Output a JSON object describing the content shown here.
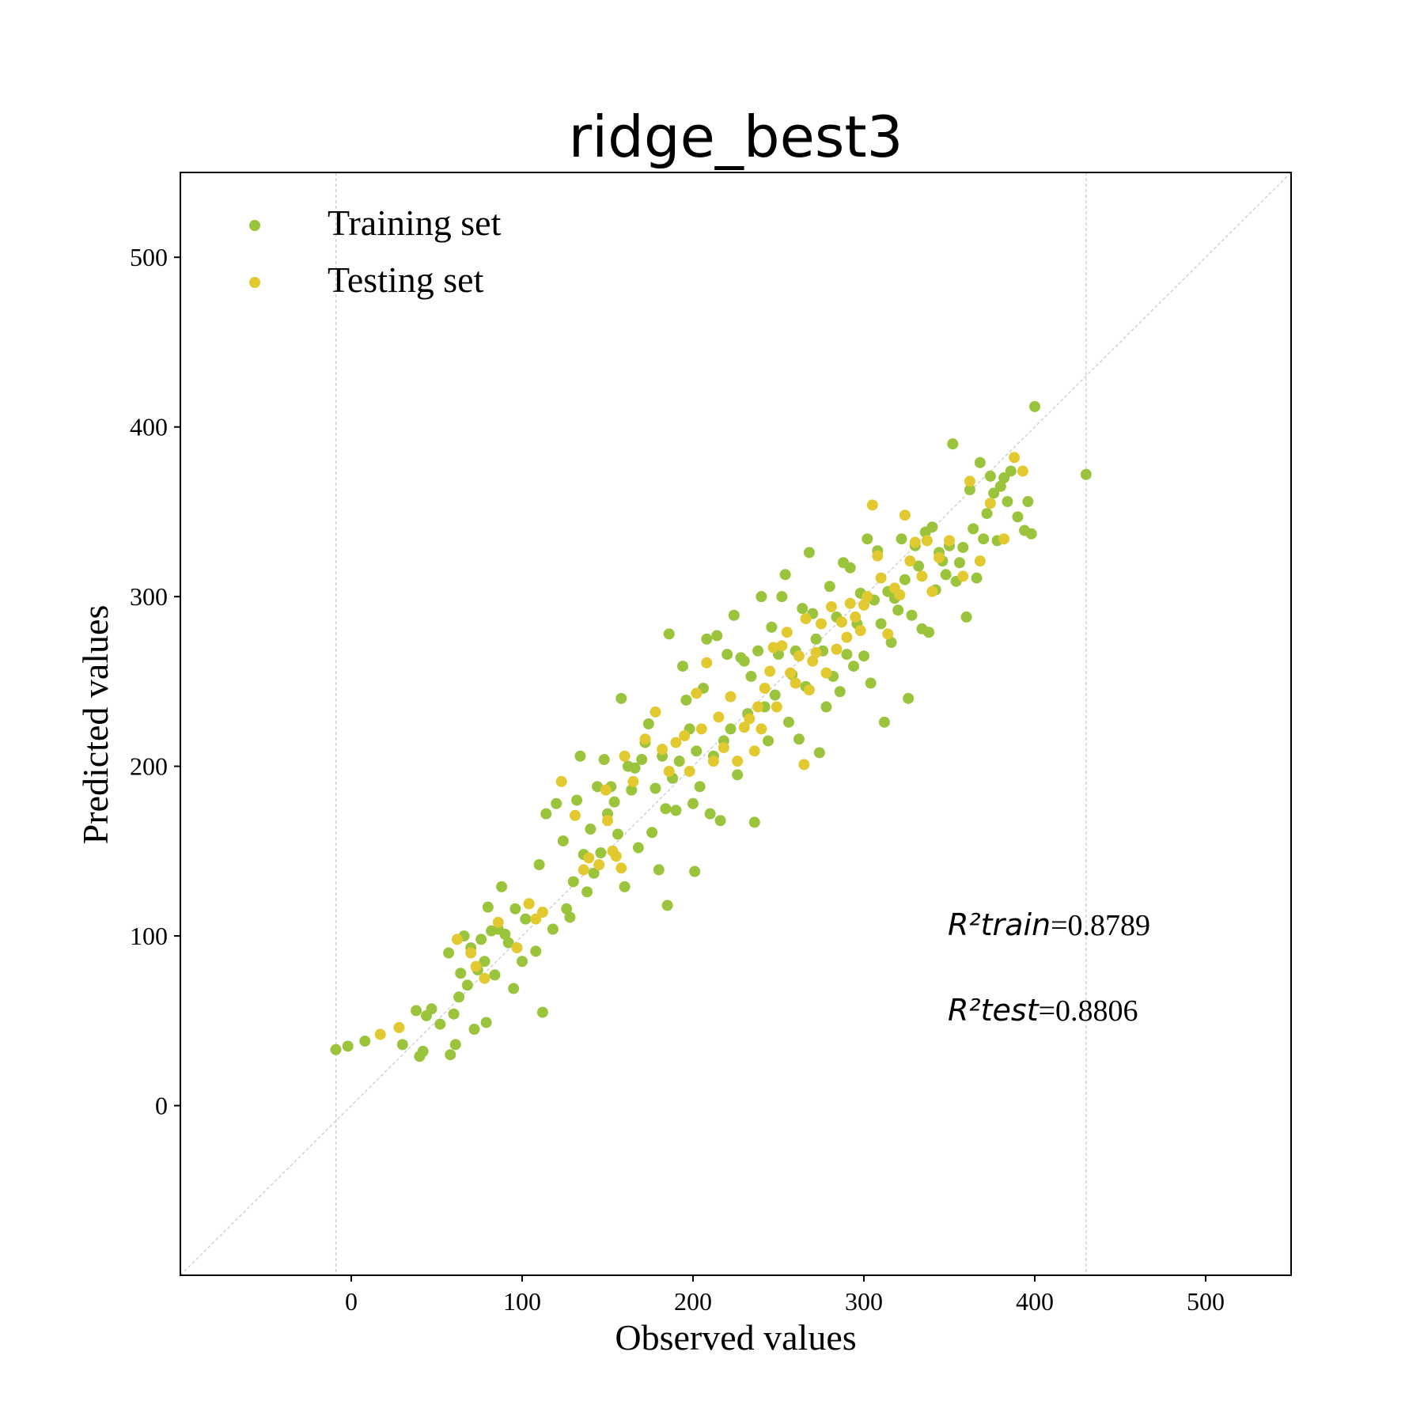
{
  "chart_data": {
    "type": "scatter",
    "title": "ridge_best3",
    "xlabel": "Observed values",
    "ylabel": "Predicted values",
    "xlim": [
      -100,
      550
    ],
    "ylim": [
      -100,
      550
    ],
    "xticks": [
      "0",
      "100",
      "200",
      "300",
      "400",
      "500"
    ],
    "yticks": [
      "0",
      "100",
      "200",
      "300",
      "400",
      "500"
    ],
    "grid": false,
    "reference_line": "y = x",
    "vertical_reference_lines": [
      -9,
      430
    ],
    "legend": {
      "placement": "top-left"
    },
    "annotations": [
      {
        "label": "R²train",
        "value": "=0.8789"
      },
      {
        "label": "R²test",
        "value": "=0.8806"
      }
    ],
    "colors": {
      "train": "#9ac43c",
      "test": "#e2c92f",
      "axis": "#000000",
      "guide": "#c8c8c8"
    },
    "series": [
      {
        "name": "Training set",
        "color": "#9ac43c",
        "points": [
          [
            -9,
            33
          ],
          [
            -2,
            35
          ],
          [
            8,
            38
          ],
          [
            30,
            36
          ],
          [
            38,
            56
          ],
          [
            40,
            29
          ],
          [
            42,
            32
          ],
          [
            44,
            53
          ],
          [
            47,
            57
          ],
          [
            52,
            48
          ],
          [
            57,
            90
          ],
          [
            58,
            30
          ],
          [
            60,
            54
          ],
          [
            61,
            36
          ],
          [
            63,
            64
          ],
          [
            64,
            78
          ],
          [
            66,
            100
          ],
          [
            68,
            71
          ],
          [
            70,
            93
          ],
          [
            72,
            45
          ],
          [
            74,
            80
          ],
          [
            76,
            98
          ],
          [
            78,
            85
          ],
          [
            79,
            49
          ],
          [
            80,
            117
          ],
          [
            82,
            103
          ],
          [
            84,
            77
          ],
          [
            86,
            104
          ],
          [
            88,
            129
          ],
          [
            90,
            101
          ],
          [
            92,
            96
          ],
          [
            95,
            69
          ],
          [
            96,
            116
          ],
          [
            100,
            85
          ],
          [
            102,
            110
          ],
          [
            104,
            119
          ],
          [
            108,
            91
          ],
          [
            110,
            142
          ],
          [
            112,
            55
          ],
          [
            114,
            172
          ],
          [
            118,
            104
          ],
          [
            120,
            178
          ],
          [
            124,
            156
          ],
          [
            126,
            116
          ],
          [
            128,
            111
          ],
          [
            130,
            132
          ],
          [
            132,
            180
          ],
          [
            134,
            206
          ],
          [
            136,
            148
          ],
          [
            138,
            126
          ],
          [
            140,
            163
          ],
          [
            142,
            137
          ],
          [
            144,
            188
          ],
          [
            146,
            149
          ],
          [
            148,
            204
          ],
          [
            150,
            172
          ],
          [
            152,
            188
          ],
          [
            154,
            179
          ],
          [
            156,
            160
          ],
          [
            158,
            240
          ],
          [
            160,
            129
          ],
          [
            162,
            200
          ],
          [
            164,
            186
          ],
          [
            166,
            199
          ],
          [
            168,
            152
          ],
          [
            170,
            204
          ],
          [
            172,
            214
          ],
          [
            174,
            225
          ],
          [
            176,
            161
          ],
          [
            178,
            187
          ],
          [
            180,
            139
          ],
          [
            182,
            206
          ],
          [
            184,
            175
          ],
          [
            185,
            118
          ],
          [
            186,
            278
          ],
          [
            188,
            193
          ],
          [
            190,
            174
          ],
          [
            192,
            203
          ],
          [
            194,
            259
          ],
          [
            196,
            239
          ],
          [
            198,
            222
          ],
          [
            200,
            178
          ],
          [
            201,
            138
          ],
          [
            202,
            209
          ],
          [
            204,
            188
          ],
          [
            206,
            246
          ],
          [
            208,
            275
          ],
          [
            210,
            172
          ],
          [
            212,
            206
          ],
          [
            214,
            277
          ],
          [
            216,
            168
          ],
          [
            218,
            215
          ],
          [
            220,
            266
          ],
          [
            222,
            222
          ],
          [
            224,
            289
          ],
          [
            226,
            195
          ],
          [
            228,
            264
          ],
          [
            230,
            262
          ],
          [
            232,
            231
          ],
          [
            234,
            253
          ],
          [
            236,
            167
          ],
          [
            238,
            268
          ],
          [
            240,
            300
          ],
          [
            242,
            235
          ],
          [
            244,
            215
          ],
          [
            246,
            282
          ],
          [
            248,
            242
          ],
          [
            250,
            266
          ],
          [
            252,
            300
          ],
          [
            254,
            313
          ],
          [
            256,
            226
          ],
          [
            258,
            254
          ],
          [
            260,
            268
          ],
          [
            262,
            216
          ],
          [
            264,
            293
          ],
          [
            266,
            247
          ],
          [
            268,
            326
          ],
          [
            270,
            290
          ],
          [
            272,
            275
          ],
          [
            274,
            208
          ],
          [
            276,
            268
          ],
          [
            278,
            235
          ],
          [
            280,
            306
          ],
          [
            282,
            253
          ],
          [
            284,
            288
          ],
          [
            286,
            244
          ],
          [
            288,
            320
          ],
          [
            290,
            266
          ],
          [
            292,
            317
          ],
          [
            294,
            259
          ],
          [
            296,
            284
          ],
          [
            298,
            302
          ],
          [
            300,
            265
          ],
          [
            302,
            334
          ],
          [
            304,
            249
          ],
          [
            306,
            298
          ],
          [
            308,
            327
          ],
          [
            310,
            284
          ],
          [
            312,
            226
          ],
          [
            314,
            303
          ],
          [
            316,
            273
          ],
          [
            318,
            299
          ],
          [
            320,
            292
          ],
          [
            322,
            334
          ],
          [
            324,
            310
          ],
          [
            326,
            240
          ],
          [
            328,
            289
          ],
          [
            330,
            330
          ],
          [
            332,
            318
          ],
          [
            334,
            281
          ],
          [
            336,
            338
          ],
          [
            338,
            279
          ],
          [
            340,
            341
          ],
          [
            342,
            304
          ],
          [
            344,
            326
          ],
          [
            346,
            321
          ],
          [
            348,
            313
          ],
          [
            350,
            330
          ],
          [
            352,
            390
          ],
          [
            354,
            309
          ],
          [
            356,
            320
          ],
          [
            358,
            329
          ],
          [
            360,
            288
          ],
          [
            362,
            363
          ],
          [
            364,
            340
          ],
          [
            366,
            311
          ],
          [
            368,
            379
          ],
          [
            370,
            334
          ],
          [
            372,
            349
          ],
          [
            374,
            371
          ],
          [
            376,
            361
          ],
          [
            378,
            333
          ],
          [
            380,
            365
          ],
          [
            382,
            370
          ],
          [
            384,
            356
          ],
          [
            386,
            374
          ],
          [
            390,
            347
          ],
          [
            394,
            339
          ],
          [
            396,
            356
          ],
          [
            398,
            337
          ],
          [
            400,
            412
          ],
          [
            430,
            372
          ]
        ]
      },
      {
        "name": "Testing set",
        "color": "#e2c92f",
        "points": [
          [
            17,
            42
          ],
          [
            28,
            46
          ],
          [
            62,
            98
          ],
          [
            70,
            90
          ],
          [
            73,
            82
          ],
          [
            78,
            75
          ],
          [
            86,
            108
          ],
          [
            97,
            93
          ],
          [
            104,
            119
          ],
          [
            108,
            110
          ],
          [
            112,
            114
          ],
          [
            123,
            191
          ],
          [
            131,
            171
          ],
          [
            136,
            139
          ],
          [
            139,
            146
          ],
          [
            145,
            142
          ],
          [
            149,
            186
          ],
          [
            150,
            168
          ],
          [
            153,
            150
          ],
          [
            155,
            147
          ],
          [
            158,
            140
          ],
          [
            160,
            206
          ],
          [
            165,
            191
          ],
          [
            172,
            216
          ],
          [
            178,
            232
          ],
          [
            182,
            210
          ],
          [
            186,
            197
          ],
          [
            190,
            214
          ],
          [
            195,
            218
          ],
          [
            198,
            197
          ],
          [
            202,
            243
          ],
          [
            205,
            222
          ],
          [
            208,
            261
          ],
          [
            212,
            203
          ],
          [
            215,
            229
          ],
          [
            218,
            211
          ],
          [
            222,
            241
          ],
          [
            226,
            203
          ],
          [
            230,
            223
          ],
          [
            233,
            228
          ],
          [
            236,
            209
          ],
          [
            238,
            235
          ],
          [
            240,
            222
          ],
          [
            242,
            246
          ],
          [
            245,
            256
          ],
          [
            247,
            270
          ],
          [
            249,
            235
          ],
          [
            252,
            271
          ],
          [
            255,
            279
          ],
          [
            257,
            255
          ],
          [
            260,
            249
          ],
          [
            262,
            265
          ],
          [
            265,
            201
          ],
          [
            266,
            287
          ],
          [
            268,
            245
          ],
          [
            270,
            262
          ],
          [
            272,
            267
          ],
          [
            275,
            284
          ],
          [
            278,
            255
          ],
          [
            281,
            294
          ],
          [
            284,
            269
          ],
          [
            287,
            285
          ],
          [
            290,
            276
          ],
          [
            292,
            296
          ],
          [
            295,
            288
          ],
          [
            298,
            280
          ],
          [
            300,
            295
          ],
          [
            302,
            300
          ],
          [
            305,
            354
          ],
          [
            308,
            324
          ],
          [
            310,
            311
          ],
          [
            314,
            278
          ],
          [
            318,
            305
          ],
          [
            321,
            301
          ],
          [
            324,
            348
          ],
          [
            327,
            321
          ],
          [
            330,
            332
          ],
          [
            334,
            312
          ],
          [
            337,
            333
          ],
          [
            340,
            303
          ],
          [
            344,
            323
          ],
          [
            350,
            333
          ],
          [
            358,
            312
          ],
          [
            362,
            368
          ],
          [
            368,
            321
          ],
          [
            374,
            355
          ],
          [
            382,
            334
          ],
          [
            388,
            382
          ],
          [
            393,
            374
          ]
        ]
      }
    ]
  }
}
